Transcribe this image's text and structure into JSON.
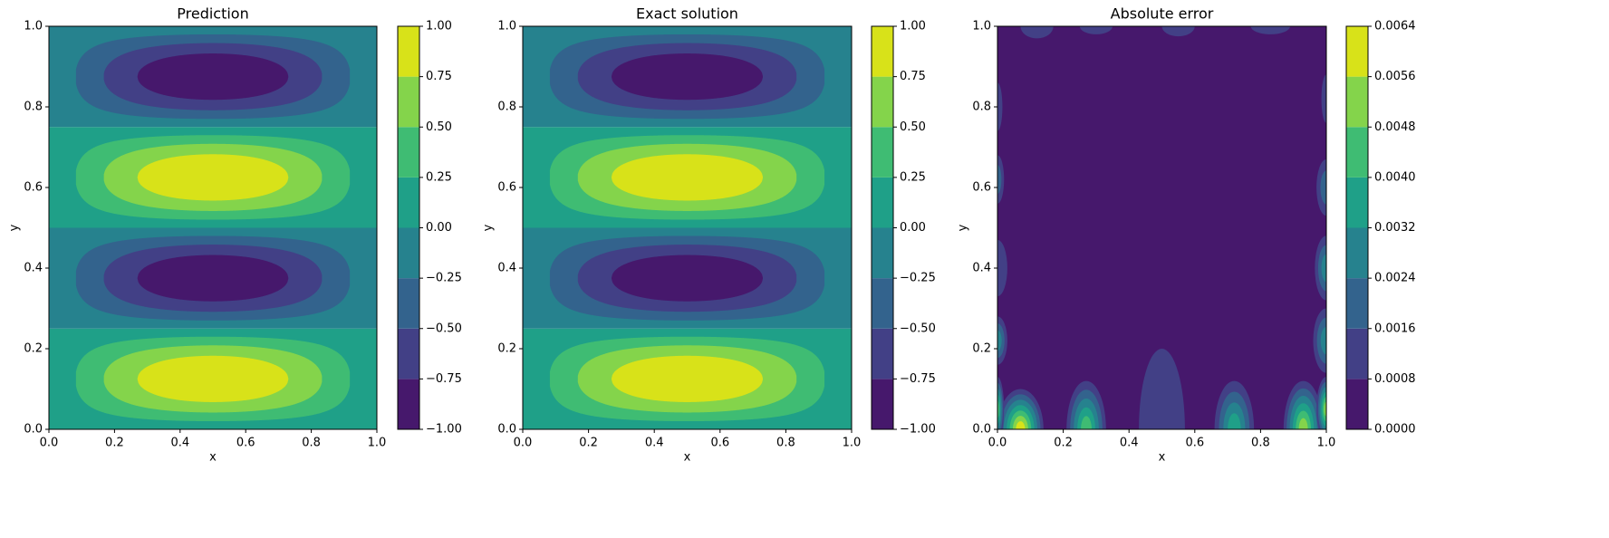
{
  "chart_data": [
    {
      "type": "contourf",
      "title": "Prediction",
      "xlabel": "x",
      "ylabel": "y",
      "xlim": [
        0,
        1
      ],
      "xticks": [
        {
          "value": 0,
          "label": "0.0"
        },
        0.2,
        0.4,
        0.6,
        0.8,
        {
          "value": 1,
          "label": "1.0"
        }
      ],
      "ylim": [
        0,
        1
      ],
      "yticks": [
        {
          "value": 0,
          "label": "0.0"
        },
        0.2,
        0.4,
        0.6,
        0.8,
        {
          "value": 1,
          "label": "1.0"
        }
      ],
      "levels": [
        {
          "value": -1,
          "label": "−1.00"
        },
        {
          "value": -0.75,
          "label": "−0.75"
        },
        {
          "value": -0.5,
          "label": "−0.50"
        },
        {
          "value": -0.25,
          "label": "−0.25"
        },
        {
          "value": 0,
          "label": "0.00"
        },
        0.25,
        {
          "value": 0.5,
          "label": "0.50"
        },
        0.75,
        {
          "value": 1,
          "label": "1.00"
        }
      ],
      "colors": [
        "#46186c",
        "#424086",
        "#33638d",
        "#26828e",
        "#1fa088",
        "#3fbc73",
        "#84d44b",
        "#d8e219"
      ]
    },
    {
      "type": "contourf",
      "title": "Exact solution",
      "xlabel": "x",
      "ylabel": "y",
      "xlim": [
        0,
        1
      ],
      "xticks": [
        {
          "value": 0,
          "label": "0.0"
        },
        0.2,
        0.4,
        0.6,
        0.8,
        {
          "value": 1,
          "label": "1.0"
        }
      ],
      "ylim": [
        0,
        1
      ],
      "yticks": [
        {
          "value": 0,
          "label": "0.0"
        },
        0.2,
        0.4,
        0.6,
        0.8,
        {
          "value": 1,
          "label": "1.0"
        }
      ],
      "levels": [
        {
          "value": -1,
          "label": "−1.00"
        },
        {
          "value": -0.75,
          "label": "−0.75"
        },
        {
          "value": -0.5,
          "label": "−0.50"
        },
        {
          "value": -0.25,
          "label": "−0.25"
        },
        {
          "value": 0,
          "label": "0.00"
        },
        0.25,
        {
          "value": 0.5,
          "label": "0.50"
        },
        0.75,
        {
          "value": 1,
          "label": "1.00"
        }
      ],
      "colors": [
        "#46186c",
        "#424086",
        "#33638d",
        "#26828e",
        "#1fa088",
        "#3fbc73",
        "#84d44b",
        "#d8e219"
      ]
    },
    {
      "type": "error",
      "title": "Absolute error",
      "xlabel": "x",
      "ylabel": "y",
      "xlim": [
        0,
        1
      ],
      "xticks": [
        {
          "value": 0,
          "label": "0.0"
        },
        0.2,
        0.4,
        0.6,
        0.8,
        {
          "value": 1,
          "label": "1.0"
        }
      ],
      "ylim": [
        0,
        1
      ],
      "yticks": [
        {
          "value": 0,
          "label": "0.0"
        },
        0.2,
        0.4,
        0.6,
        0.8,
        {
          "value": 1,
          "label": "1.0"
        }
      ],
      "levels": [
        {
          "value": 0,
          "label": "0.0000"
        },
        0.0008,
        0.0016,
        0.0024,
        0.0032,
        {
          "value": 0.004,
          "label": "0.0040"
        },
        0.0048,
        0.0056,
        0.0064
      ],
      "colors": [
        "#46186c",
        "#424086",
        "#33638d",
        "#26828e",
        "#1fa088",
        "#3fbc73",
        "#84d44b",
        "#d8e219"
      ]
    }
  ]
}
